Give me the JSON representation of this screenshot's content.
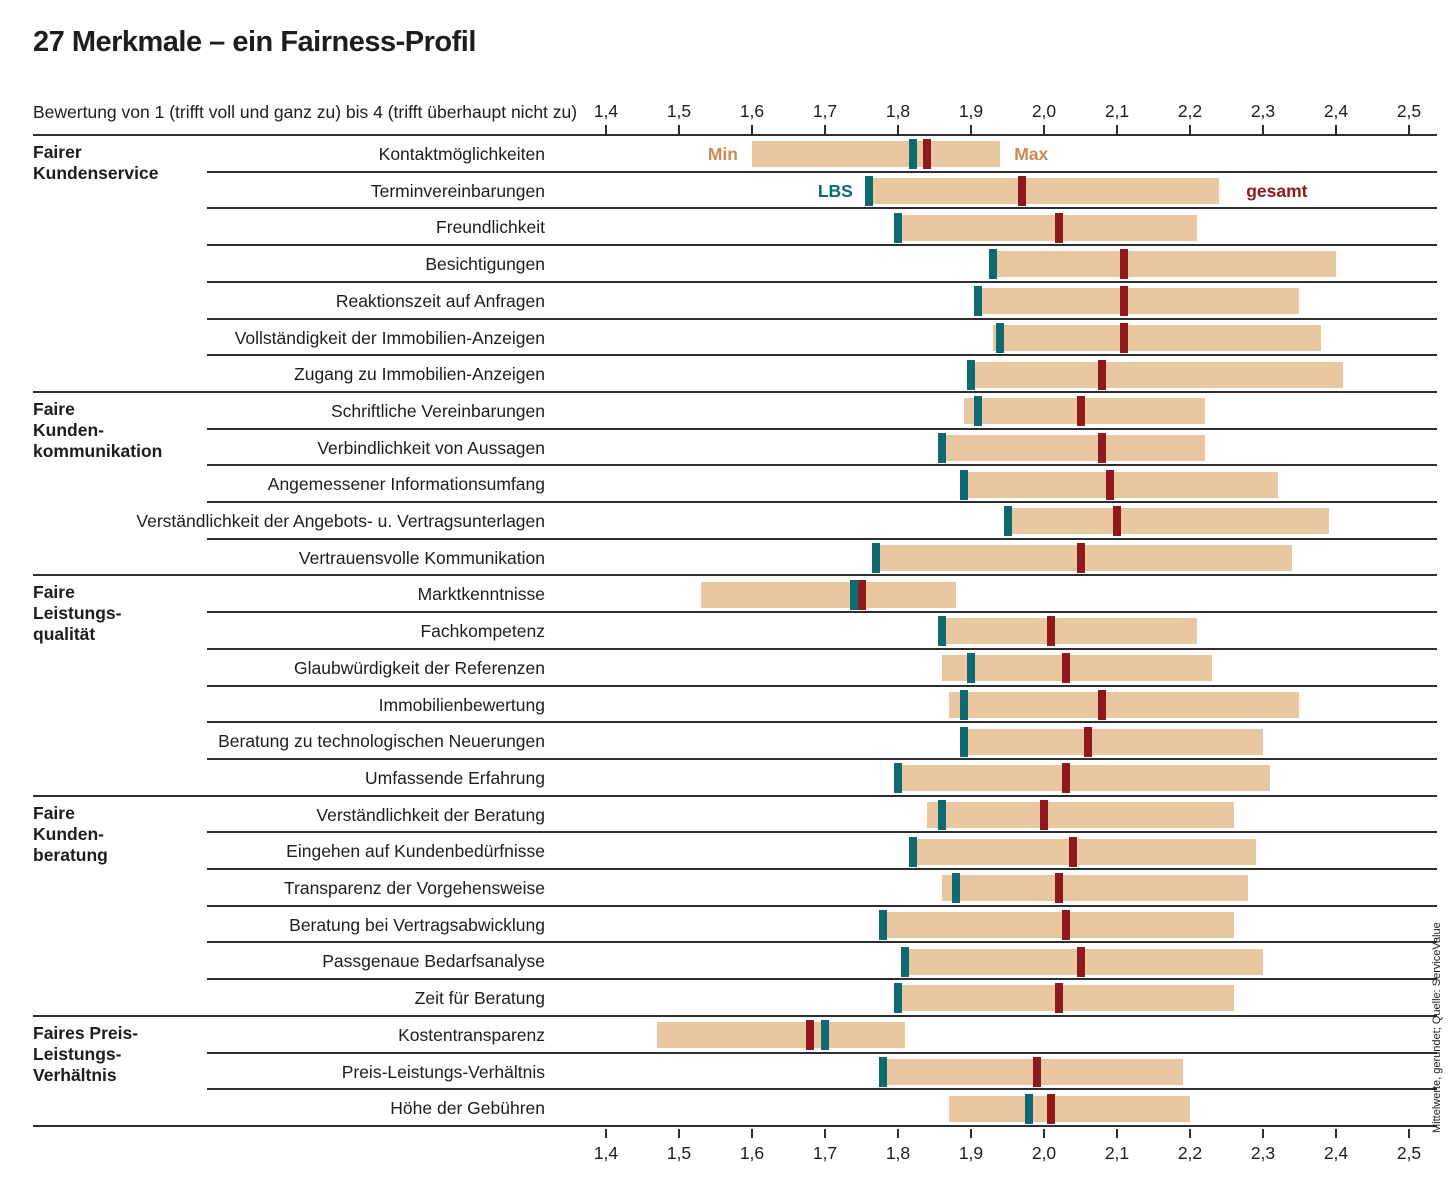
{
  "title": "27 Merkmale – ein Fairness-Profil",
  "subtitle": "Bewertung von 1 (trifft voll und ganz zu) bis 4 (trifft überhaupt nicht zu)",
  "source_note": "Mittelwerte, gerundet; Quelle: ServiceValue",
  "legend": {
    "min": "Min",
    "max": "Max",
    "lbs": "LBS",
    "gesamt": "gesamt"
  },
  "colors": {
    "bar": "#e9c7a0",
    "lbs": "#0e6a71",
    "gesamt": "#8e1a1d",
    "minmax_label": "#cb8a52",
    "line": "#2e2e2d",
    "text": "#1d1d1b"
  },
  "chart_data": {
    "type": "range-bar",
    "axis": {
      "min": 1.4,
      "max": 2.5,
      "tick_values": [
        1.4,
        1.5,
        1.6,
        1.7,
        1.8,
        1.9,
        2.0,
        2.1,
        2.2,
        2.3,
        2.4,
        2.5
      ],
      "tick_labels": [
        "1,4",
        "1,5",
        "1,6",
        "1,7",
        "1,8",
        "1,9",
        "2,0",
        "2,1",
        "2,2",
        "2,3",
        "2,4",
        "2,5"
      ]
    },
    "series_meaning": {
      "bar_range": "Min bis Max",
      "teal_marker": "LBS",
      "red_marker": "gesamt"
    },
    "groups": [
      {
        "label_lines": [
          "Fairer",
          "Kundenservice"
        ],
        "rows": [
          {
            "label": "Kontaktmöglichkeiten",
            "min": 1.6,
            "max": 1.94,
            "lbs": 1.82,
            "gesamt": 1.84
          },
          {
            "label": "Terminvereinbarungen",
            "min": 1.76,
            "max": 2.24,
            "lbs": 1.76,
            "gesamt": 1.97
          },
          {
            "label": "Freundlichkeit",
            "min": 1.8,
            "max": 2.21,
            "lbs": 1.8,
            "gesamt": 2.02
          },
          {
            "label": "Besichtigungen",
            "min": 1.93,
            "max": 2.4,
            "lbs": 1.93,
            "gesamt": 2.11
          },
          {
            "label": "Reaktionszeit auf Anfragen",
            "min": 1.91,
            "max": 2.35,
            "lbs": 1.91,
            "gesamt": 2.11
          },
          {
            "label": "Vollständigkeit der Immobilien-Anzeigen",
            "min": 1.93,
            "max": 2.38,
            "lbs": 1.94,
            "gesamt": 2.11
          },
          {
            "label": "Zugang zu Immobilien-Anzeigen",
            "min": 1.9,
            "max": 2.41,
            "lbs": 1.9,
            "gesamt": 2.08
          }
        ]
      },
      {
        "label_lines": [
          "Faire",
          "Kunden-",
          "kommunikation"
        ],
        "rows": [
          {
            "label": "Schriftliche Vereinbarungen",
            "min": 1.89,
            "max": 2.22,
            "lbs": 1.91,
            "gesamt": 2.05
          },
          {
            "label": "Verbindlichkeit von Aussagen",
            "min": 1.86,
            "max": 2.22,
            "lbs": 1.86,
            "gesamt": 2.08
          },
          {
            "label": "Angemessener Informationsumfang",
            "min": 1.89,
            "max": 2.32,
            "lbs": 1.89,
            "gesamt": 2.09
          },
          {
            "label": "Verständlichkeit der Angebots- u. Vertragsunterlagen",
            "min": 1.95,
            "max": 2.39,
            "lbs": 1.95,
            "gesamt": 2.1
          },
          {
            "label": "Vertrauensvolle Kommunikation",
            "min": 1.77,
            "max": 2.34,
            "lbs": 1.77,
            "gesamt": 2.05
          }
        ]
      },
      {
        "label_lines": [
          "Faire",
          "Leistungs-",
          "qualität"
        ],
        "rows": [
          {
            "label": "Marktkenntnisse",
            "min": 1.53,
            "max": 1.88,
            "lbs": 1.74,
            "gesamt": 1.75
          },
          {
            "label": "Fachkompetenz",
            "min": 1.86,
            "max": 2.21,
            "lbs": 1.86,
            "gesamt": 2.01
          },
          {
            "label": "Glaubwürdigkeit der Referenzen",
            "min": 1.86,
            "max": 2.23,
            "lbs": 1.9,
            "gesamt": 2.03
          },
          {
            "label": "Immobilienbewertung",
            "min": 1.87,
            "max": 2.35,
            "lbs": 1.89,
            "gesamt": 2.08
          },
          {
            "label": "Beratung zu technologischen Neuerungen",
            "min": 1.89,
            "max": 2.3,
            "lbs": 1.89,
            "gesamt": 2.06
          },
          {
            "label": "Umfassende Erfahrung",
            "min": 1.8,
            "max": 2.31,
            "lbs": 1.8,
            "gesamt": 2.03
          }
        ]
      },
      {
        "label_lines": [
          "Faire",
          "Kunden-",
          "beratung"
        ],
        "rows": [
          {
            "label": "Verständlichkeit der Beratung",
            "min": 1.84,
            "max": 2.26,
            "lbs": 1.86,
            "gesamt": 2.0
          },
          {
            "label": "Eingehen auf Kundenbedürfnisse",
            "min": 1.82,
            "max": 2.29,
            "lbs": 1.82,
            "gesamt": 2.04
          },
          {
            "label": "Transparenz der Vorgehensweise",
            "min": 1.86,
            "max": 2.28,
            "lbs": 1.88,
            "gesamt": 2.02
          },
          {
            "label": "Beratung bei Vertragsabwicklung",
            "min": 1.78,
            "max": 2.26,
            "lbs": 1.78,
            "gesamt": 2.03
          },
          {
            "label": "Passgenaue Bedarfsanalyse",
            "min": 1.81,
            "max": 2.3,
            "lbs": 1.81,
            "gesamt": 2.05
          },
          {
            "label": "Zeit für Beratung",
            "min": 1.8,
            "max": 2.26,
            "lbs": 1.8,
            "gesamt": 2.02
          }
        ]
      },
      {
        "label_lines": [
          "Faires Preis-",
          "Leistungs-",
          "Verhältnis"
        ],
        "rows": [
          {
            "label": "Kostentransparenz",
            "min": 1.47,
            "max": 1.81,
            "lbs": 1.7,
            "gesamt": 1.68
          },
          {
            "label": "Preis-Leistungs-Verhältnis",
            "min": 1.78,
            "max": 2.19,
            "lbs": 1.78,
            "gesamt": 1.99
          },
          {
            "label": "Höhe der Gebühren",
            "min": 1.87,
            "max": 2.2,
            "lbs": 1.98,
            "gesamt": 2.01
          }
        ]
      }
    ]
  }
}
